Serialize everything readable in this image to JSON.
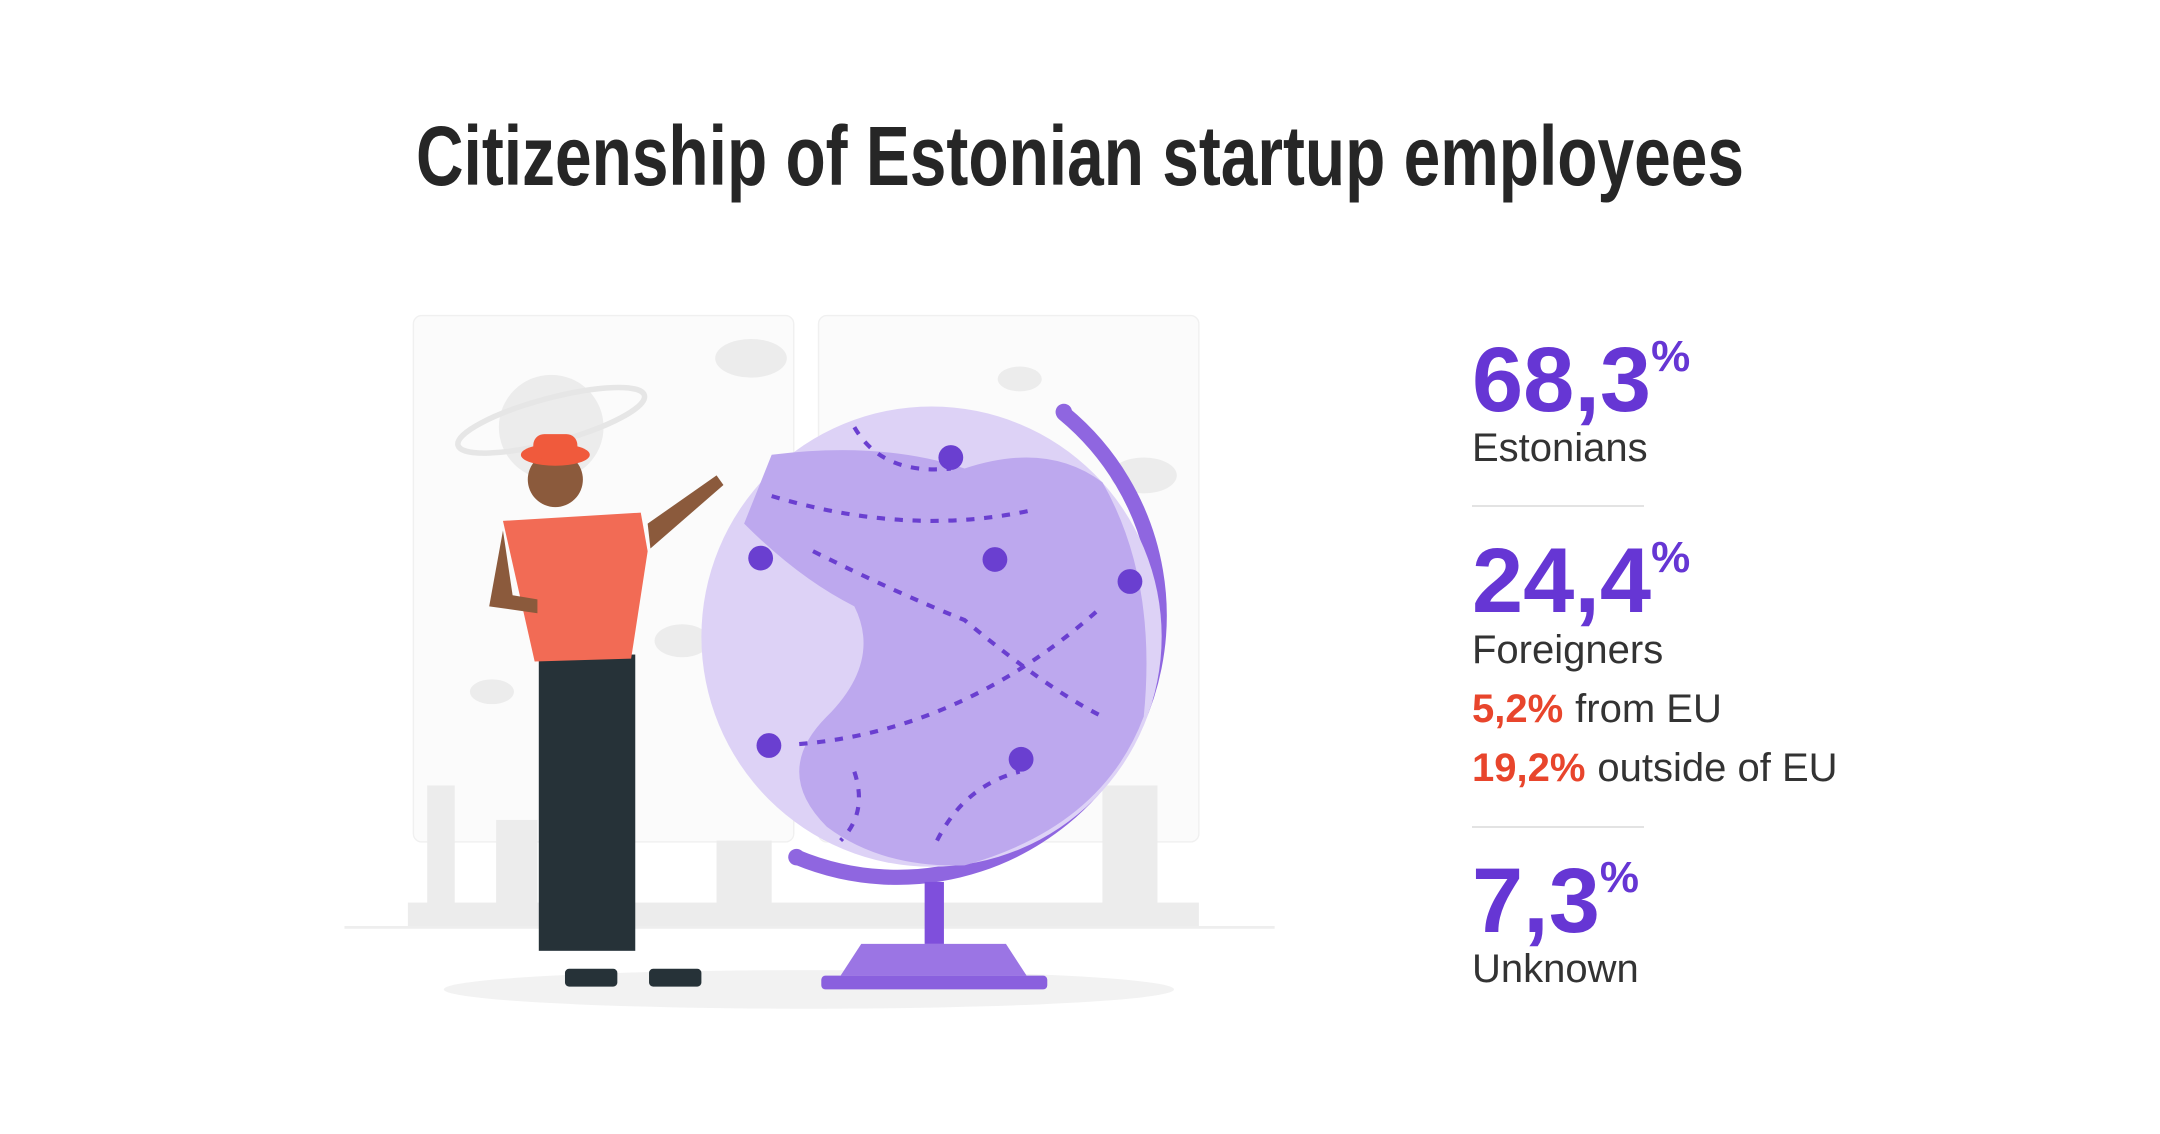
{
  "header": {
    "title": "Citizenship of Estonian startup employees"
  },
  "stats": [
    {
      "value": "68,3",
      "unit": "%",
      "label": "Estonians"
    },
    {
      "value": "24,4",
      "unit": "%",
      "label": "Foreigners",
      "breakdown": [
        {
          "value": "5,2%",
          "label": "from EU"
        },
        {
          "value": "19,2%",
          "label": "outside of EU"
        }
      ]
    },
    {
      "value": "7,3",
      "unit": "%",
      "label": "Unknown"
    }
  ]
}
